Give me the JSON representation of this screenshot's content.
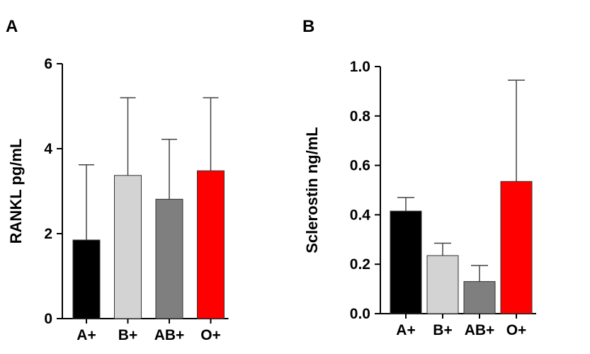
{
  "chart_data": [
    {
      "type": "bar",
      "panel": "A",
      "categories": [
        "A+",
        "B+",
        "AB+",
        "O+"
      ],
      "values": [
        1.85,
        3.37,
        2.81,
        3.48
      ],
      "error_upper": [
        3.62,
        5.2,
        4.22,
        5.2
      ],
      "colors": [
        "#000000",
        "#d3d3d3",
        "#7f7f7f",
        "#ff0000"
      ],
      "ylabel": "RANKL pg/mL",
      "xlabel": "",
      "ylim": [
        0,
        6
      ],
      "yticks": [
        "0",
        "2",
        "4",
        "6"
      ],
      "grid": false
    },
    {
      "type": "bar",
      "panel": "B",
      "categories": [
        "A+",
        "B+",
        "AB+",
        "O+"
      ],
      "values": [
        0.415,
        0.235,
        0.13,
        0.535
      ],
      "error_upper": [
        0.47,
        0.285,
        0.195,
        0.945
      ],
      "colors": [
        "#000000",
        "#d3d3d3",
        "#7f7f7f",
        "#ff0000"
      ],
      "ylabel": "Sclerostin ng/mL",
      "xlabel": "",
      "ylim": [
        0,
        1.0
      ],
      "yticks": [
        "0.0",
        "0.2",
        "0.4",
        "0.6",
        "0.8",
        "1.0"
      ],
      "grid": false
    }
  ]
}
